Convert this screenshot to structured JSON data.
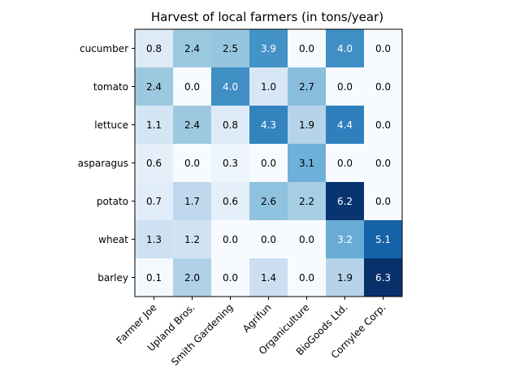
{
  "chart_data": {
    "type": "heatmap",
    "title": "Harvest of local farmers (in tons/year)",
    "rows": [
      "cucumber",
      "tomato",
      "lettuce",
      "asparagus",
      "potato",
      "wheat",
      "barley"
    ],
    "columns": [
      "Farmer Joe",
      "Upland Bros.",
      "Smith Gardening",
      "Agrifun",
      "Organiculture",
      "BioGoods Ltd.",
      "Cornylee Corp."
    ],
    "values": [
      [
        0.8,
        2.4,
        2.5,
        3.9,
        0.0,
        4.0,
        0.0
      ],
      [
        2.4,
        0.0,
        4.0,
        1.0,
        2.7,
        0.0,
        0.0
      ],
      [
        1.1,
        2.4,
        0.8,
        4.3,
        1.9,
        4.4,
        0.0
      ],
      [
        0.6,
        0.0,
        0.3,
        0.0,
        3.1,
        0.0,
        0.0
      ],
      [
        0.7,
        1.7,
        0.6,
        2.6,
        2.2,
        6.2,
        0.0
      ],
      [
        1.3,
        1.2,
        0.0,
        0.0,
        0.0,
        3.2,
        5.1
      ],
      [
        0.1,
        2.0,
        0.0,
        1.4,
        0.0,
        1.9,
        6.3
      ]
    ],
    "colormap": "Blues",
    "value_range": [
      0.0,
      6.3
    ],
    "grid": false,
    "x_tick_rotation_deg": 45
  }
}
